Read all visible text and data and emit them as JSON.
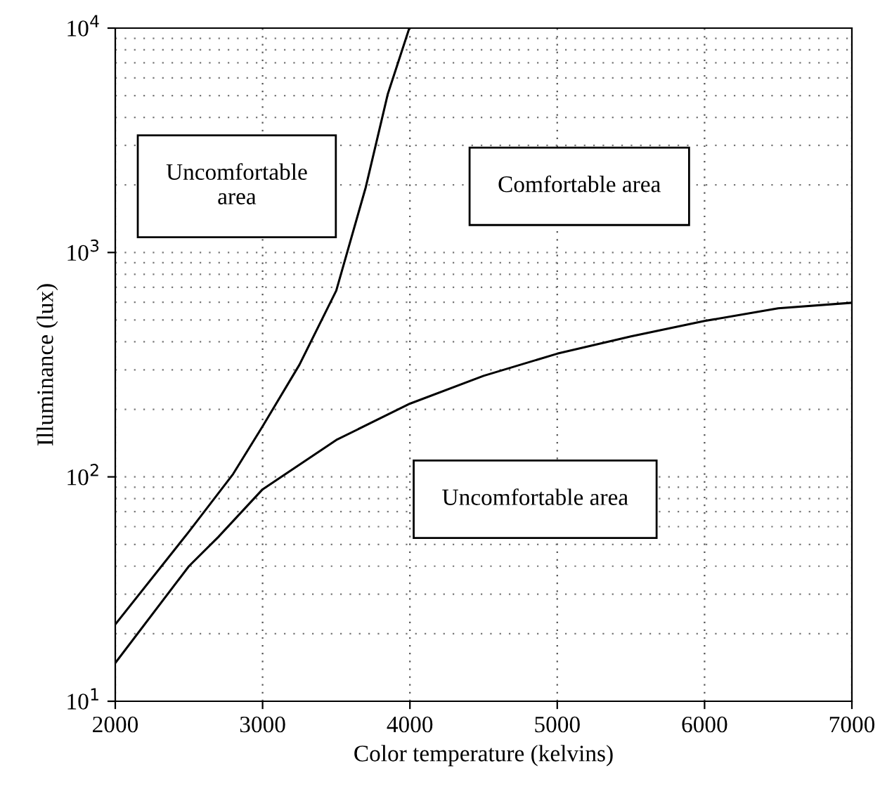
{
  "chart_data": {
    "type": "line",
    "xlabel": "Color temperature (kelvins)",
    "ylabel": "Illuminance (lux)",
    "series": [
      {
        "color": "#000000",
        "x": [
          2000,
          2500,
          2800,
          3000,
          3250,
          3500,
          3700,
          3850,
          3996
        ],
        "values": [
          22,
          57,
          103,
          168,
          316,
          676,
          1950,
          5090,
          10000
        ]
      },
      {
        "color": "#000000",
        "x": [
          2000,
          2500,
          2700,
          3000,
          3500,
          4000,
          4500,
          5000,
          5500,
          6000,
          6500,
          7000
        ],
        "values": [
          14.8,
          40,
          54,
          88,
          146,
          212,
          282,
          354,
          423,
          495,
          564,
          597
        ]
      }
    ],
    "annotations": [
      "Uncomfortable\narea",
      "Comfortable area",
      "Uncomfortable area"
    ],
    "log": "y",
    "xlim": [
      2000,
      7000
    ],
    "ylim": [
      10,
      10000
    ],
    "xticks": [
      2000,
      3000,
      4000,
      5000,
      6000,
      7000
    ],
    "yticks": [
      {
        "value": 10,
        "label": "10$^{1}$"
      },
      {
        "value": 100,
        "label": "10$^{2}$"
      },
      {
        "value": 1000,
        "label": "10$^{3}$"
      },
      {
        "value": 10000,
        "label": "10$^{4}$"
      }
    ],
    "grid": true,
    "marker": "none",
    "line_style": "solid"
  }
}
